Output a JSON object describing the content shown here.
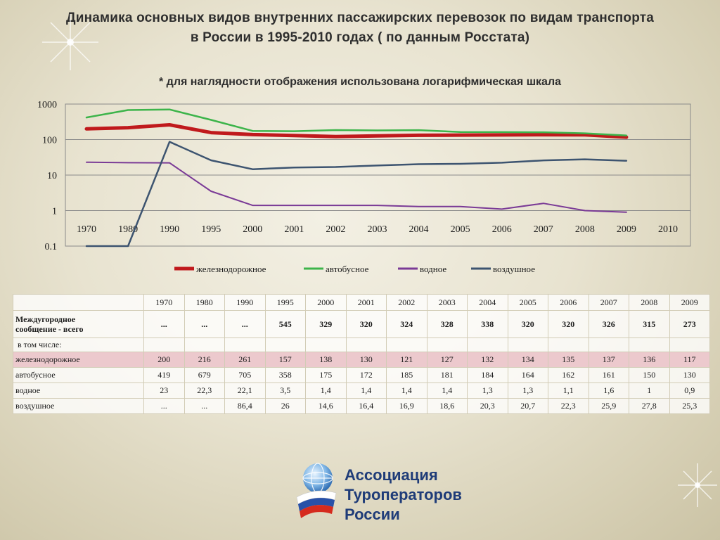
{
  "title_line1": "Динамика основных видов внутренних пассажирских перевозок по видам транспорта",
  "title_line2": "в России в 1995-2010 годах ( по данным Росстата)",
  "subtitle": "* для наглядности отображения использована логарифмическая шкала",
  "chart_data": {
    "type": "line",
    "title": "",
    "xlabel": "",
    "ylabel": "",
    "x": [
      "1970",
      "1980",
      "1990",
      "1995",
      "2000",
      "2001",
      "2002",
      "2003",
      "2004",
      "2005",
      "2006",
      "2007",
      "2008",
      "2009",
      "2010"
    ],
    "y_scale": "log",
    "ylim": [
      0.1,
      1000
    ],
    "y_ticks": [
      "1000",
      "100",
      "10",
      "1",
      "0.1"
    ],
    "grid": "horizontal",
    "legend": "bottom",
    "series": [
      {
        "name": "железнодорожное",
        "color": "#c0191c",
        "width": 5,
        "values": [
          200,
          216,
          261,
          157,
          138,
          130,
          121,
          127,
          132,
          134,
          135,
          137,
          136,
          117,
          null
        ]
      },
      {
        "name": "автобусное",
        "color": "#3cb44a",
        "width": 2.5,
        "values": [
          419,
          679,
          705,
          358,
          175,
          172,
          185,
          181,
          184,
          164,
          162,
          161,
          150,
          130,
          null
        ]
      },
      {
        "name": "водное",
        "color": "#7a3a96",
        "width": 2,
        "values": [
          23,
          22.3,
          22.1,
          3.5,
          1.4,
          1.4,
          1.4,
          1.4,
          1.3,
          1.3,
          1.1,
          1.6,
          1,
          0.9,
          null
        ]
      },
      {
        "name": "воздушное",
        "color": "#3d5470",
        "width": 2.5,
        "values": [
          0.1,
          0.1,
          86.4,
          26,
          14.6,
          16.4,
          16.9,
          18.6,
          20.3,
          20.7,
          22.3,
          25.9,
          27.8,
          25.3,
          null
        ]
      }
    ]
  },
  "table": {
    "years": [
      "1970",
      "1980",
      "1990",
      "1995",
      "2000",
      "2001",
      "2002",
      "2003",
      "2004",
      "2005",
      "2006",
      "2007",
      "2008",
      "2009"
    ],
    "total_label_1": "Междугородное",
    "total_label_2": "сообщение - всего",
    "total": [
      "...",
      "...",
      "...",
      "545",
      "329",
      "320",
      "324",
      "328",
      "338",
      "320",
      "320",
      "326",
      "315",
      "273"
    ],
    "including_label": "в том числе:",
    "rows": [
      {
        "label": "железнодорожное",
        "values": [
          "200",
          "216",
          "261",
          "157",
          "138",
          "130",
          "121",
          "127",
          "132",
          "134",
          "135",
          "137",
          "136",
          "117"
        ]
      },
      {
        "label": "автобусное",
        "values": [
          "419",
          "679",
          "705",
          "358",
          "175",
          "172",
          "185",
          "181",
          "184",
          "164",
          "162",
          "161",
          "150",
          "130"
        ]
      },
      {
        "label": "водное",
        "values": [
          "23",
          "22,3",
          "22,1",
          "3,5",
          "1,4",
          "1,4",
          "1,4",
          "1,4",
          "1,3",
          "1,3",
          "1,1",
          "1,6",
          "1",
          "0,9"
        ]
      },
      {
        "label": "воздушное",
        "values": [
          "...",
          "...",
          "86,4",
          "26",
          "14,6",
          "16,4",
          "16,9",
          "18,6",
          "20,3",
          "20,7",
          "22,3",
          "25,9",
          "27,8",
          "25,3"
        ]
      }
    ]
  },
  "logo": {
    "line1": "Ассоциация",
    "line2": "Туроператоров",
    "line3": "России",
    "icon": "globe-flag-icon",
    "color": "#1f3c78"
  }
}
